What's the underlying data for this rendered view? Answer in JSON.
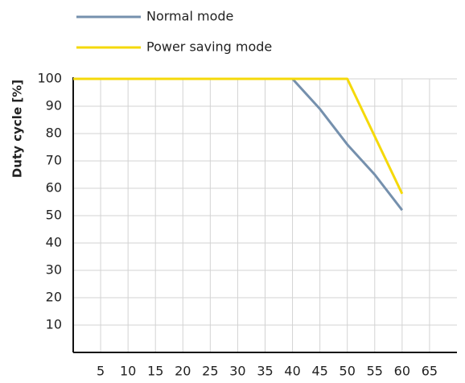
{
  "chart_data": {
    "type": "line",
    "y_label": "Duty cycle [%]",
    "x": [
      0,
      40,
      45,
      50,
      55,
      60
    ],
    "series": [
      {
        "name": "Normal mode",
        "color": "#7590ad",
        "x": [
          0,
          40,
          45,
          50,
          55,
          60
        ],
        "values": [
          100,
          100,
          89,
          76,
          65,
          52
        ]
      },
      {
        "name": "Power saving mode",
        "color": "#f5d90a",
        "x": [
          0,
          50,
          60
        ],
        "values": [
          100,
          100,
          58
        ]
      }
    ],
    "xlim": [
      0,
      70
    ],
    "ylim": [
      0,
      100
    ],
    "xticks": [
      5,
      10,
      15,
      20,
      25,
      30,
      35,
      40,
      45,
      50,
      55,
      60,
      65
    ],
    "yticks": [
      10,
      20,
      30,
      40,
      50,
      60,
      70,
      80,
      90,
      100
    ],
    "grid": true
  }
}
